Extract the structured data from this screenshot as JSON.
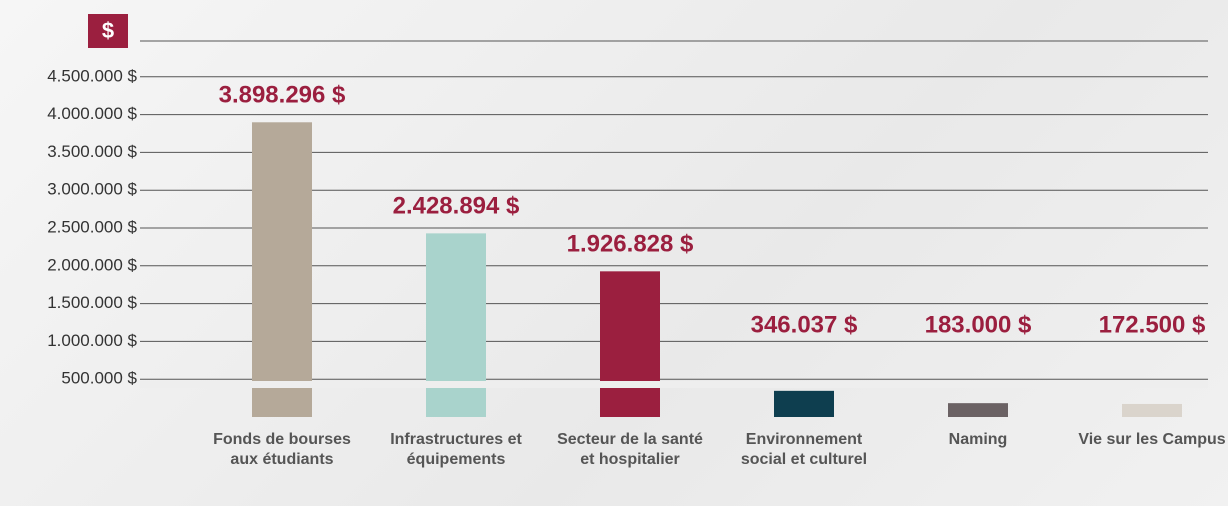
{
  "badge": "$",
  "chart_data": {
    "type": "bar",
    "categories": [
      "Fonds de bourses aux étudiants",
      "Infrastructures et équipements",
      "Secteur de la santé et hospitalier",
      "Environnement social et culturel",
      "Naming",
      "Vie sur les Campus"
    ],
    "values": [
      3898296,
      2428894,
      1926828,
      346037,
      183000,
      172500
    ],
    "value_labels": [
      "3.898.296 $",
      "2.428.894 $",
      "1.926.828 $",
      "346.037 $",
      "183.000 $",
      "172.500 $"
    ],
    "colors": [
      "#b5a999",
      "#a9d3cc",
      "#9b1f3f",
      "#0e3e4f",
      "#6b6264",
      "#dad4cc"
    ],
    "ylim": [
      0,
      5000000
    ],
    "yticks": [
      {
        "value": 500000,
        "label": "500.000 $"
      },
      {
        "value": 1000000,
        "label": "1.000.000 $"
      },
      {
        "value": 1500000,
        "label": "1.500.000 $"
      },
      {
        "value": 2000000,
        "label": "2.000.000 $"
      },
      {
        "value": 2500000,
        "label": "2.500.000 $"
      },
      {
        "value": 3000000,
        "label": "3.000.000 $"
      },
      {
        "value": 3500000,
        "label": "3.500.000 $"
      },
      {
        "value": 4000000,
        "label": "4.000.000 $"
      },
      {
        "value": 4500000,
        "label": "4.500.000 $"
      }
    ],
    "grid": true
  }
}
